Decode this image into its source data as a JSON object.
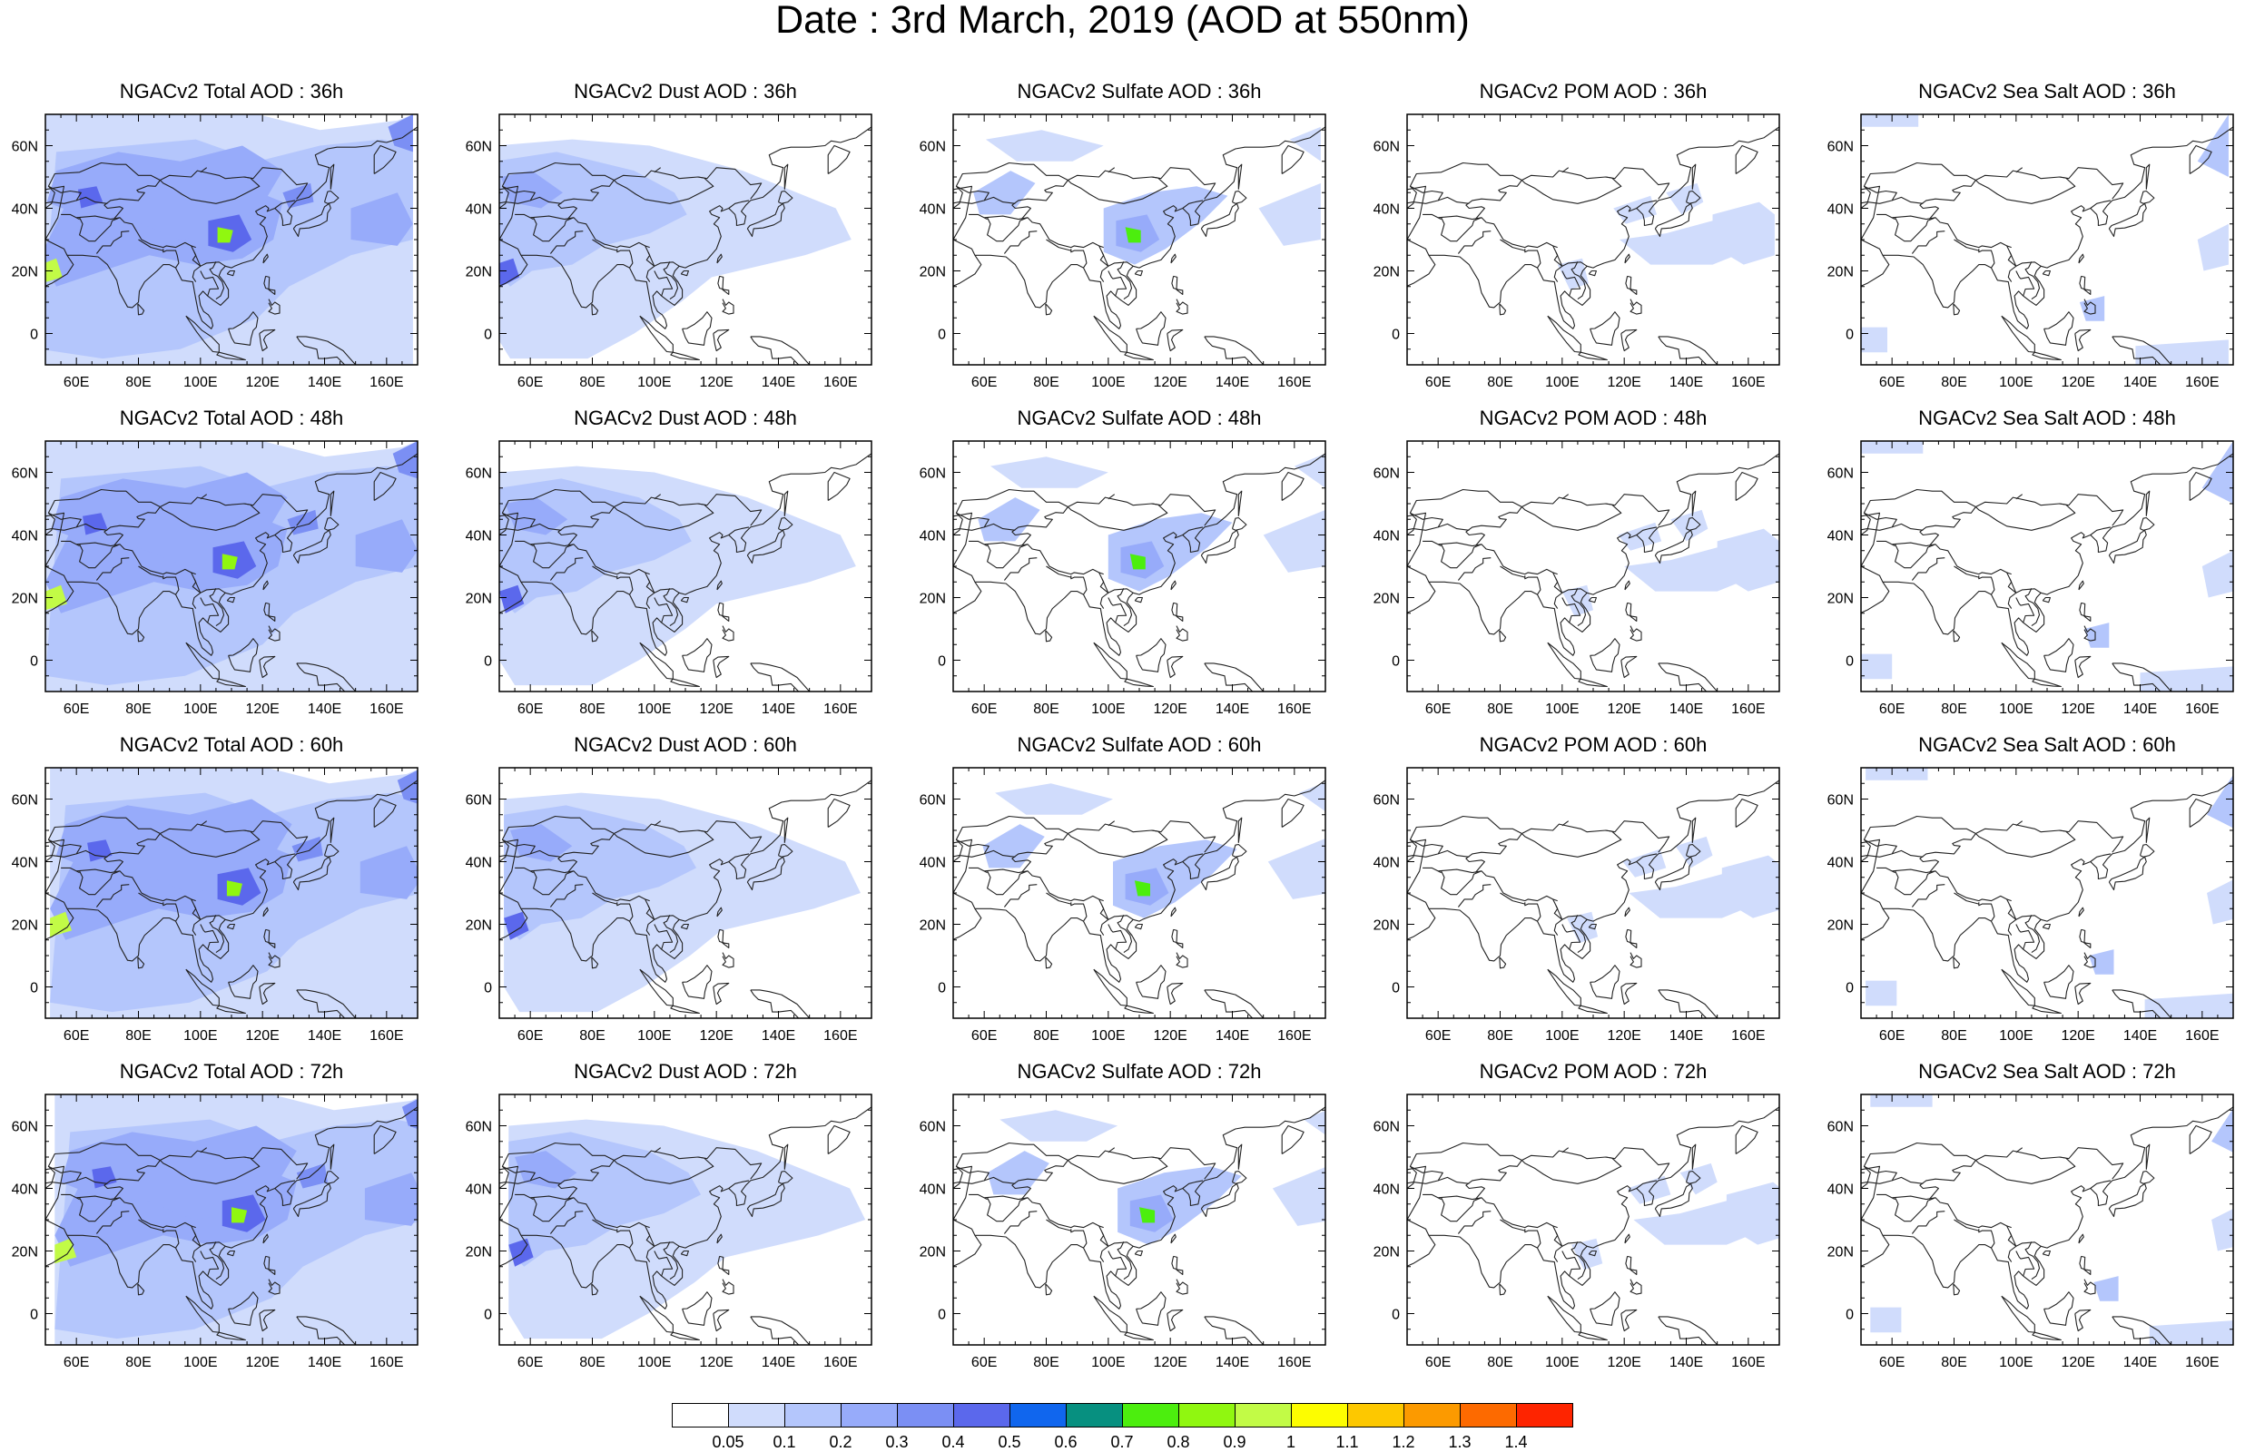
{
  "title": "Date : 3rd March, 2019 (AOD at 550nm)",
  "axes": {
    "lon_ticks": [
      "60E",
      "80E",
      "100E",
      "120E",
      "140E",
      "160E"
    ],
    "lat_ticks": [
      "60N",
      "40N",
      "20N",
      "0"
    ],
    "lon_range": [
      50,
      170
    ],
    "lat_range": [
      -10,
      70
    ]
  },
  "colors": [
    "#ffffff",
    "#d0dcfc",
    "#b4c6fc",
    "#97abfa",
    "#7b8ff4",
    "#5b68ec",
    "#1066ee",
    "#079080",
    "#4cee0e",
    "#90f710",
    "#c2fb46",
    "#fdfd00",
    "#fdc800",
    "#fc9a00",
    "#fd6a00",
    "#fe2400"
  ],
  "colorbar": {
    "labels": [
      "0.05",
      "0.1",
      "0.2",
      "0.3",
      "0.4",
      "0.5",
      "0.6",
      "0.7",
      "0.8",
      "0.9",
      "1",
      "1.1",
      "1.2",
      "1.3",
      "1.4"
    ]
  },
  "panels": [
    {
      "title": "NGACv2 Total AOD : 36h"
    },
    {
      "title": "NGACv2 Dust AOD : 36h"
    },
    {
      "title": "NGACv2 Sulfate AOD : 36h"
    },
    {
      "title": "NGACv2 POM AOD : 36h"
    },
    {
      "title": "NGACv2 Sea Salt AOD : 36h"
    },
    {
      "title": "NGACv2 Total AOD : 48h"
    },
    {
      "title": "NGACv2 Dust AOD : 48h"
    },
    {
      "title": "NGACv2 Sulfate AOD : 48h"
    },
    {
      "title": "NGACv2 POM AOD : 48h"
    },
    {
      "title": "NGACv2 Sea Salt AOD : 48h"
    },
    {
      "title": "NGACv2 Total AOD : 60h"
    },
    {
      "title": "NGACv2 Dust AOD : 60h"
    },
    {
      "title": "NGACv2 Sulfate AOD : 60h"
    },
    {
      "title": "NGACv2 POM AOD : 60h"
    },
    {
      "title": "NGACv2 Sea Salt AOD : 60h"
    },
    {
      "title": "NGACv2 Total AOD : 72h"
    },
    {
      "title": "NGACv2 Dust AOD : 72h"
    },
    {
      "title": "NGACv2 Sulfate AOD : 72h"
    },
    {
      "title": "NGACv2 POM AOD : 72h"
    },
    {
      "title": "NGACv2 Sea Salt  AOD : 72h"
    }
  ]
}
